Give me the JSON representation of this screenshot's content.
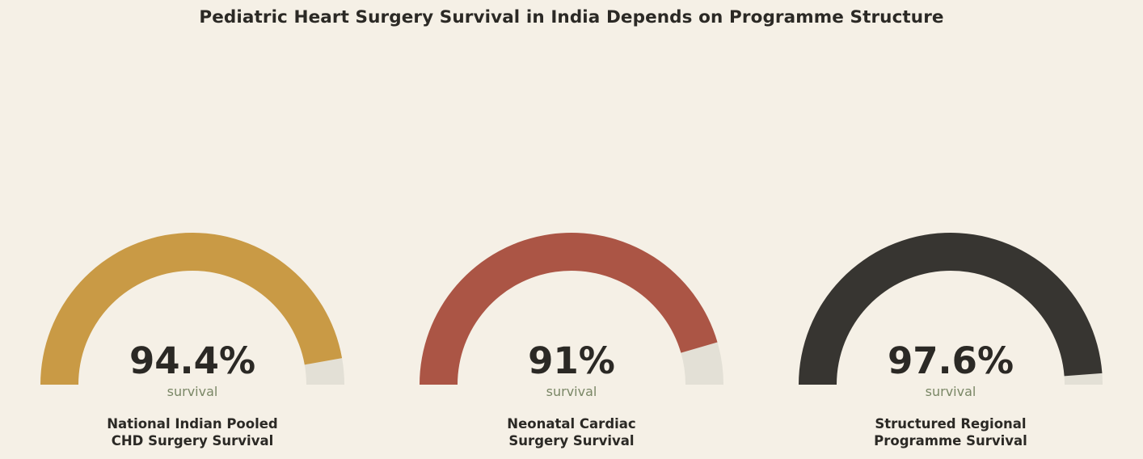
{
  "chart_data": {
    "type": "gauge",
    "title": "Pediatric Heart Surgery Survival in India Depends on Programme Structure",
    "unit_label": "survival",
    "range": [
      0,
      100
    ],
    "track_color": "#e3e0d6",
    "gauges": [
      {
        "value": 94.4,
        "value_label": "94.4%",
        "label_lines": [
          "National Indian Pooled",
          "CHD Surgery Survival"
        ],
        "color": "#c99a45"
      },
      {
        "value": 91,
        "value_label": "91%",
        "label_lines": [
          "Neonatal Cardiac",
          "Surgery Survival"
        ],
        "color": "#ab5545"
      },
      {
        "value": 97.6,
        "value_label": "97.6%",
        "label_lines": [
          "Structured Regional",
          "Programme Survival"
        ],
        "color": "#373531"
      }
    ]
  }
}
